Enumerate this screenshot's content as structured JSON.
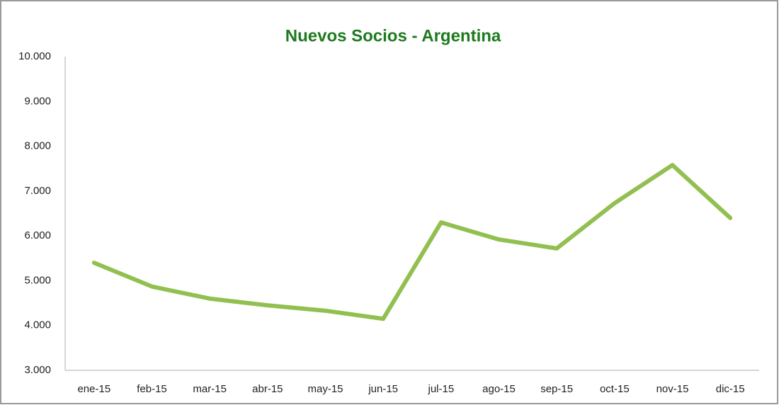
{
  "chart_data": {
    "type": "line",
    "title": "Nuevos Socios - Argentina",
    "categories": [
      "ene-15",
      "feb-15",
      "mar-15",
      "abr-15",
      "may-15",
      "jun-15",
      "jul-15",
      "ago-15",
      "sep-15",
      "oct-15",
      "nov-15",
      "dic-15"
    ],
    "values": [
      5400,
      4870,
      4600,
      4450,
      4330,
      4150,
      6300,
      5920,
      5720,
      6730,
      7580,
      6400
    ],
    "color": "#92c050",
    "ylim": [
      3000,
      10000
    ],
    "yticks": [
      {
        "value": 3000,
        "label": "3.000"
      },
      {
        "value": 4000,
        "label": "4.000"
      },
      {
        "value": 5000,
        "label": "5.000"
      },
      {
        "value": 6000,
        "label": "6.000"
      },
      {
        "value": 7000,
        "label": "7.000"
      },
      {
        "value": 8000,
        "label": "8.000"
      },
      {
        "value": 9000,
        "label": "9.000"
      },
      {
        "value": 10000,
        "label": "10.000"
      }
    ],
    "grid": false
  }
}
